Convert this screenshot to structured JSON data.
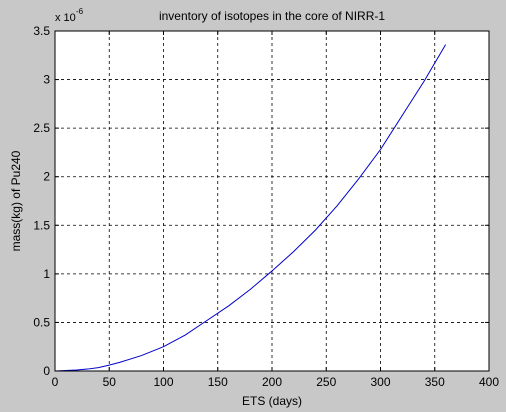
{
  "chart_data": {
    "type": "line",
    "title": "inventory of isotopes in the core of NIRR-1",
    "xlabel": "ETS (days)",
    "ylabel": "mass(kg) of Pu240",
    "y_multiplier_base": "x 10",
    "y_multiplier_exponent": "-6",
    "xlim": [
      0,
      400
    ],
    "ylim": [
      0,
      3.5
    ],
    "x_ticks": [
      "0",
      "50",
      "100",
      "150",
      "200",
      "250",
      "300",
      "350",
      "400"
    ],
    "y_ticks": [
      "0",
      "0.5",
      "1",
      "1.5",
      "2",
      "2.5",
      "3",
      "3.5"
    ],
    "grid": true,
    "legend": "none",
    "series": [
      {
        "color": "#0000cc",
        "x": [
          0,
          20,
          30,
          40,
          50,
          60,
          80,
          100,
          120,
          140,
          160,
          180,
          200,
          220,
          240,
          260,
          280,
          300,
          320,
          340,
          360
        ],
        "y": [
          0.0,
          0.01,
          0.02,
          0.035,
          0.06,
          0.09,
          0.16,
          0.25,
          0.37,
          0.52,
          0.67,
          0.84,
          1.03,
          1.23,
          1.45,
          1.7,
          1.98,
          2.28,
          2.63,
          2.98,
          3.36
        ]
      }
    ]
  }
}
